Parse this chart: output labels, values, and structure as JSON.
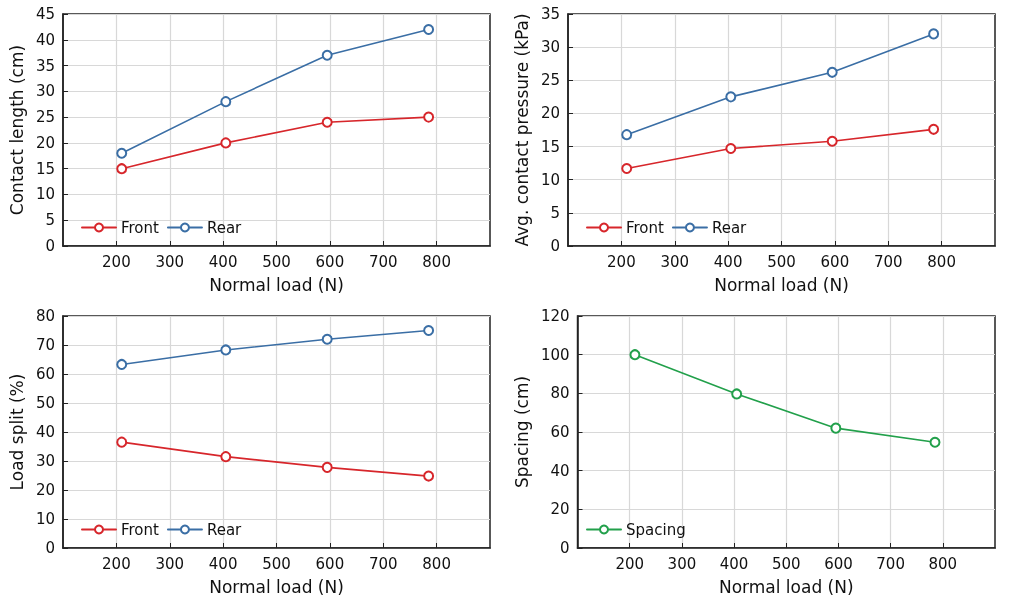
{
  "chart_data": [
    {
      "type": "line",
      "xlabel": "Normal load (N)",
      "ylabel": "Contact length (cm)",
      "xlim": [
        100,
        900
      ],
      "xticks": [
        200,
        300,
        400,
        500,
        600,
        700,
        800
      ],
      "ylim": [
        0,
        45
      ],
      "yticks": [
        0,
        5,
        10,
        15,
        20,
        25,
        30,
        35,
        40,
        45
      ],
      "grid": true,
      "legend": "bottom left",
      "marker": "circle",
      "x": [
        210,
        405,
        595,
        785
      ],
      "series": [
        {
          "name": "Front",
          "color": "#d7262b",
          "values": [
            15,
            20,
            24,
            25
          ]
        },
        {
          "name": "Rear",
          "color": "#3a6ea5",
          "values": [
            18,
            28,
            37,
            42
          ]
        }
      ]
    },
    {
      "type": "line",
      "xlabel": "Normal load (N)",
      "ylabel": "Avg. contact pressure (kPa)",
      "xlim": [
        100,
        900
      ],
      "xticks": [
        200,
        300,
        400,
        500,
        600,
        700,
        800
      ],
      "ylim": [
        0,
        35
      ],
      "yticks": [
        0,
        5,
        10,
        15,
        20,
        25,
        30,
        35
      ],
      "grid": true,
      "legend": "bottom left",
      "marker": "circle",
      "x": [
        210,
        405,
        595,
        785
      ],
      "series": [
        {
          "name": "Front",
          "color": "#d7262b",
          "values": [
            11.7,
            14.7,
            15.8,
            17.6
          ]
        },
        {
          "name": "Rear",
          "color": "#3a6ea5",
          "values": [
            16.8,
            22.5,
            26.2,
            32
          ]
        }
      ]
    },
    {
      "type": "line",
      "xlabel": "Normal load (N)",
      "ylabel": "Load split (%)",
      "xlim": [
        100,
        900
      ],
      "xticks": [
        200,
        300,
        400,
        500,
        600,
        700,
        800
      ],
      "ylim": [
        0,
        80
      ],
      "yticks": [
        0,
        10,
        20,
        30,
        40,
        50,
        60,
        70,
        80
      ],
      "grid": true,
      "legend": "bottom left",
      "marker": "circle",
      "x": [
        210,
        405,
        595,
        785
      ],
      "series": [
        {
          "name": "Front",
          "color": "#d7262b",
          "values": [
            36.5,
            31.5,
            27.8,
            24.8
          ]
        },
        {
          "name": "Rear",
          "color": "#3a6ea5",
          "values": [
            63.3,
            68.3,
            72,
            75
          ]
        }
      ]
    },
    {
      "type": "line",
      "xlabel": "Normal load (N)",
      "ylabel": "Spacing (cm)",
      "xlim": [
        100,
        900
      ],
      "xticks": [
        200,
        300,
        400,
        500,
        600,
        700,
        800
      ],
      "ylim": [
        0,
        120
      ],
      "yticks": [
        0,
        20,
        40,
        60,
        80,
        100,
        120
      ],
      "grid": true,
      "legend": "bottom left",
      "marker": "circle",
      "x": [
        210,
        405,
        595,
        785
      ],
      "series": [
        {
          "name": "Spacing",
          "color": "#22a04b",
          "values": [
            100,
            79.7,
            62,
            54.7
          ]
        }
      ]
    }
  ]
}
